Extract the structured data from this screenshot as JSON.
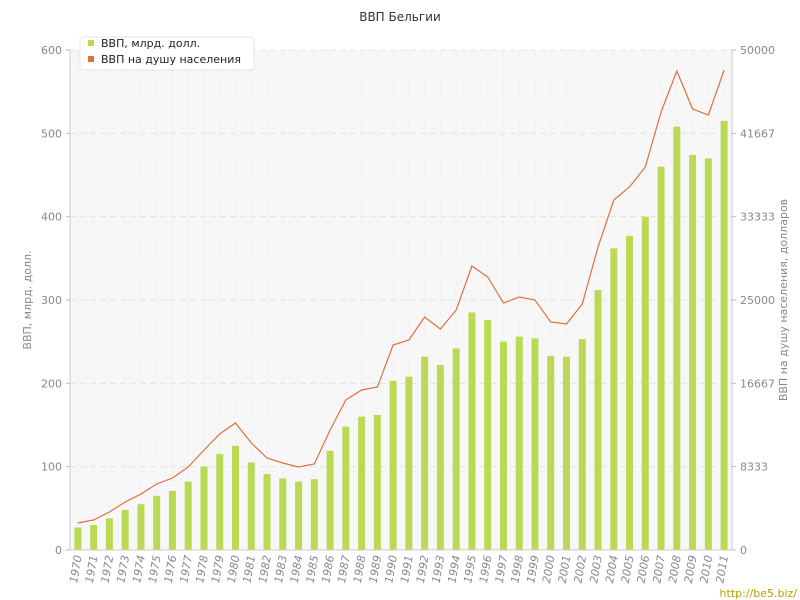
{
  "chart_data": {
    "type": "bar",
    "title": "ВВП Бельгии",
    "ylabel_left": "ВВП, млрд. долл.",
    "ylabel_right": "ВВП на душу населения, долларов",
    "ylim_left": [
      0,
      600
    ],
    "ylim_right": [
      0,
      50000
    ],
    "yticks_left": [
      "0",
      "100",
      "200",
      "300",
      "400",
      "500",
      "600"
    ],
    "yticks_right": [
      "0",
      "8333",
      "16667",
      "25000",
      "33333",
      "41667",
      "50000"
    ],
    "grid": true,
    "legend_position": "top-left",
    "categories": [
      "1970",
      "1971",
      "1972",
      "1973",
      "1974",
      "1975",
      "1976",
      "1977",
      "1978",
      "1979",
      "1980",
      "1981",
      "1982",
      "1983",
      "1984",
      "1985",
      "1986",
      "1987",
      "1988",
      "1989",
      "1990",
      "1991",
      "1992",
      "1993",
      "1994",
      "1995",
      "1996",
      "1997",
      "1998",
      "1999",
      "2000",
      "2001",
      "2002",
      "2003",
      "2004",
      "2005",
      "2006",
      "2007",
      "2008",
      "2009",
      "2010",
      "2011"
    ],
    "series": [
      {
        "name": "ВВП, млрд. долл.",
        "type": "bar",
        "axis": "left",
        "color": "#bada55",
        "values": [
          27,
          30,
          38,
          48,
          55,
          65,
          71,
          82,
          100,
          115,
          125,
          105,
          91,
          86,
          82,
          85,
          119,
          148,
          160,
          162,
          203,
          208,
          232,
          222,
          242,
          285,
          276,
          250,
          256,
          254,
          233,
          232,
          253,
          312,
          362,
          377,
          400,
          460,
          508,
          474,
          470,
          515
        ]
      },
      {
        "name": "ВВП на душу населения",
        "type": "line",
        "axis": "right",
        "color": "#e07040",
        "values": [
          2700,
          3000,
          3800,
          4800,
          5600,
          6600,
          7200,
          8300,
          10000,
          11600,
          12700,
          10700,
          9200,
          8700,
          8300,
          8600,
          12000,
          15000,
          16000,
          16300,
          20500,
          21000,
          23300,
          22100,
          24000,
          28400,
          27300,
          24700,
          25300,
          25000,
          22800,
          22600,
          24600,
          30300,
          35000,
          36300,
          38300,
          43800,
          47900,
          44100,
          43500,
          48000
        ]
      }
    ]
  },
  "watermark": "http://be5.biz/"
}
